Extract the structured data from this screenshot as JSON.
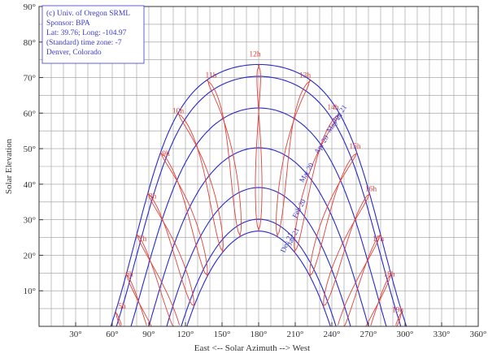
{
  "chart_data": {
    "type": "line",
    "title": "",
    "xlabel": "East <-- Solar Azimuth --> West",
    "ylabel": "Solar Elevation",
    "xlim": [
      0,
      360
    ],
    "ylim": [
      0,
      90
    ],
    "x_ticks": [
      {
        "value": 30,
        "label": "30°"
      },
      {
        "value": 60,
        "label": "60°"
      },
      {
        "value": 90,
        "label": "90°"
      },
      {
        "value": 120,
        "label": "120°"
      },
      {
        "value": 150,
        "label": "150°"
      },
      {
        "value": 180,
        "label": "180°"
      },
      {
        "value": 210,
        "label": "210°"
      },
      {
        "value": 240,
        "label": "240°"
      },
      {
        "value": 270,
        "label": "270°"
      },
      {
        "value": 300,
        "label": "300°"
      },
      {
        "value": 330,
        "label": "330°"
      },
      {
        "value": 360,
        "label": "360°"
      }
    ],
    "y_ticks": [
      {
        "value": 10,
        "label": "10°"
      },
      {
        "value": 20,
        "label": "20°"
      },
      {
        "value": 30,
        "label": "30°"
      },
      {
        "value": 40,
        "label": "40°"
      },
      {
        "value": 50,
        "label": "50°"
      },
      {
        "value": 60,
        "label": "60°"
      },
      {
        "value": 70,
        "label": "70°"
      },
      {
        "value": 80,
        "label": "80°"
      },
      {
        "value": 90,
        "label": "90°"
      }
    ],
    "grid": true,
    "latitude": 39.76,
    "info_box": [
      "(c) Univ. of Oregon SRML",
      "Sponsor: BPA",
      "Lat: 39.76; Long: -104.97",
      "(Standard) time zone: -7",
      "Denver, Colorado"
    ],
    "series": [
      {
        "name": "Jun 21",
        "declination": 23.44
      },
      {
        "name": "May 21",
        "declination": 20.1
      },
      {
        "name": "Apr 20",
        "declination": 11.2
      },
      {
        "name": "Mar 20",
        "declination": 0.0
      },
      {
        "name": "Feb 20",
        "declination": -11.2
      },
      {
        "name": "Jan 21",
        "declination": -20.1
      },
      {
        "name": "Dec 21",
        "declination": -23.44
      }
    ],
    "hour_labels": [
      {
        "label": "5h",
        "x": 68,
        "y": 5
      },
      {
        "label": "6h",
        "x": 74,
        "y": 14
      },
      {
        "label": "7h",
        "x": 85,
        "y": 24
      },
      {
        "label": "8h",
        "x": 93,
        "y": 36
      },
      {
        "label": "9h",
        "x": 104,
        "y": 48
      },
      {
        "label": "10h",
        "x": 114,
        "y": 60
      },
      {
        "label": "11h",
        "x": 141,
        "y": 70
      },
      {
        "label": "12h",
        "x": 177,
        "y": 76
      },
      {
        "label": "13h",
        "x": 218,
        "y": 70
      },
      {
        "label": "14h",
        "x": 241,
        "y": 61
      },
      {
        "label": "15h",
        "x": 259,
        "y": 50
      },
      {
        "label": "16h",
        "x": 272,
        "y": 38
      },
      {
        "label": "17h",
        "x": 278,
        "y": 24
      },
      {
        "label": "18h",
        "x": 287,
        "y": 14
      },
      {
        "label": "19h",
        "x": 294,
        "y": 4
      }
    ]
  }
}
